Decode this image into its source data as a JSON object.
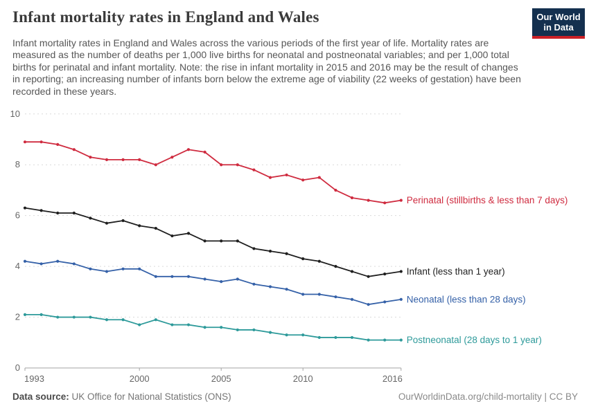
{
  "header": {
    "title": "Infant mortality rates in England and Wales",
    "subtitle": "Infant mortality rates in England and Wales across the various periods of the first year of life. Mortality rates are measured as the number of deaths per 1,000 live births for neonatal and postneonatal variables; and per 1,000 total births for perinatal and infant mortality. Note: the rise in infant mortality in 2015 and 2016 may be the result of changes in reporting; an increasing number of infants born below the extreme age of viability (22 weeks of gestation) have been recorded in these years.",
    "logo": {
      "line1": "Our World",
      "line2": "in Data",
      "bg_color": "#14304f",
      "stripe_color": "#cb2026"
    }
  },
  "chart_data": {
    "type": "line",
    "title": "Infant mortality rates in England and Wales",
    "xlabel": "",
    "ylabel": "",
    "x": [
      1993,
      1994,
      1995,
      1996,
      1997,
      1998,
      1999,
      2000,
      2001,
      2002,
      2003,
      2004,
      2005,
      2006,
      2007,
      2008,
      2009,
      2010,
      2011,
      2012,
      2013,
      2014,
      2015,
      2016
    ],
    "series": [
      {
        "name": "Perinatal (stillbirths & less than 7 days)",
        "color": "#cf2b3f",
        "values": [
          8.9,
          8.9,
          8.8,
          8.6,
          8.3,
          8.2,
          8.2,
          8.2,
          8.0,
          8.3,
          8.6,
          8.5,
          8.0,
          8.0,
          7.8,
          7.5,
          7.6,
          7.4,
          7.5,
          7.0,
          6.7,
          6.6,
          6.5,
          6.6
        ]
      },
      {
        "name": "Infant (less than 1 year)",
        "color": "#1f1f1f",
        "values": [
          6.3,
          6.2,
          6.1,
          6.1,
          5.9,
          5.7,
          5.8,
          5.6,
          5.5,
          5.2,
          5.3,
          5.0,
          5.0,
          5.0,
          4.7,
          4.6,
          4.5,
          4.3,
          4.2,
          4.0,
          3.8,
          3.6,
          3.7,
          3.8
        ]
      },
      {
        "name": "Neonatal (less than 28 days)",
        "color": "#3561a8",
        "values": [
          4.2,
          4.1,
          4.2,
          4.1,
          3.9,
          3.8,
          3.9,
          3.9,
          3.6,
          3.6,
          3.6,
          3.5,
          3.4,
          3.5,
          3.3,
          3.2,
          3.1,
          2.9,
          2.9,
          2.8,
          2.7,
          2.5,
          2.6,
          2.7
        ]
      },
      {
        "name": "Postneonatal (28 days to 1 year)",
        "color": "#2d9a9a",
        "values": [
          2.1,
          2.1,
          2.0,
          2.0,
          2.0,
          1.9,
          1.9,
          1.7,
          1.9,
          1.7,
          1.7,
          1.6,
          1.6,
          1.5,
          1.5,
          1.4,
          1.3,
          1.3,
          1.2,
          1.2,
          1.2,
          1.1,
          1.1,
          1.1
        ]
      }
    ],
    "ylim": [
      0,
      10
    ],
    "yticks": [
      0,
      2,
      4,
      6,
      8,
      10
    ],
    "xticks": [
      1993,
      2000,
      2005,
      2010,
      2016
    ],
    "grid": "horizontal-dashed",
    "legend": "end-of-line labels",
    "axis_color": "#a3a3a3",
    "grid_color": "#d9d9d9",
    "tick_label_color": "#666666"
  },
  "footer": {
    "datasource_label": "Data source:",
    "datasource_value": "UK Office for National Statistics (ONS)",
    "credit": "OurWorldinData.org/child-mortality | CC BY"
  }
}
